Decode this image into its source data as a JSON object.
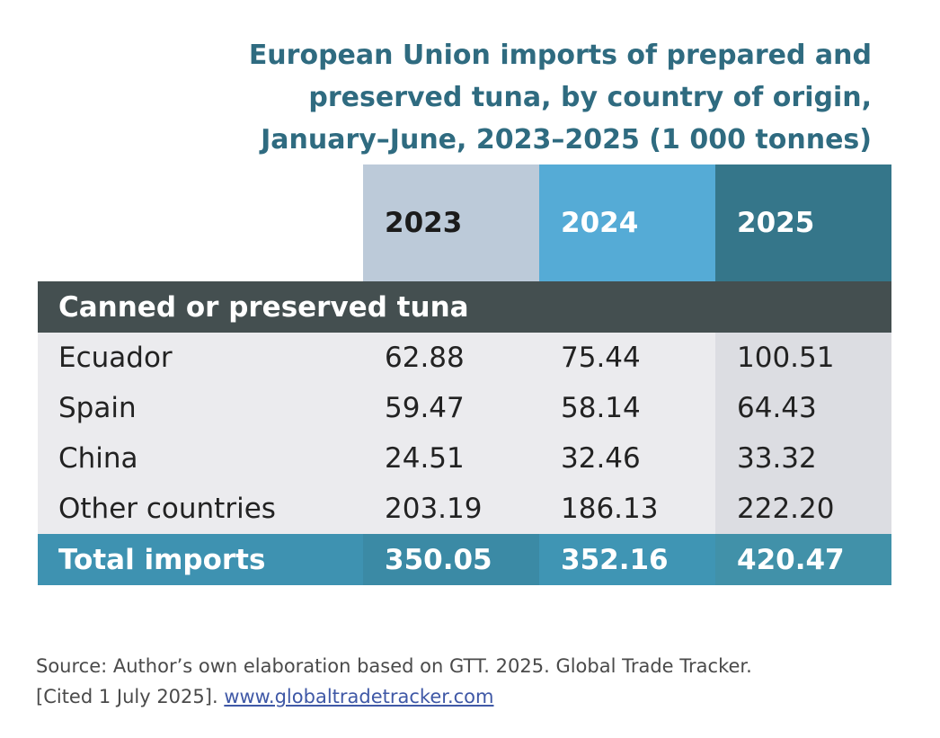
{
  "title_lines": [
    "European Union imports of prepared and",
    "preserved tuna, by country of origin,",
    "January–June, 2023–2025 (1 000 tonnes)"
  ],
  "chart_data": {
    "type": "table",
    "title": "European Union imports of prepared and preserved tuna, by country of origin, January–June, 2023–2025 (1 000 tonnes)",
    "columns": [
      "2023",
      "2024",
      "2025"
    ],
    "section": "Canned or preserved tuna",
    "rows": [
      {
        "label": "Ecuador",
        "values": [
          "62.88",
          "75.44",
          "100.51"
        ]
      },
      {
        "label": "Spain",
        "values": [
          "59.47",
          "58.14",
          "64.43"
        ]
      },
      {
        "label": "China",
        "values": [
          "24.51",
          "32.46",
          "33.32"
        ]
      },
      {
        "label": "Other countries",
        "values": [
          "203.19",
          "186.13",
          "222.20"
        ]
      }
    ],
    "total": {
      "label": "Total imports",
      "values": [
        "350.05",
        "352.16",
        "420.47"
      ]
    }
  },
  "source": {
    "text_line1": "Source: Author’s own elaboration based on GTT. 2025. Global Trade Tracker.",
    "text_line2": "[Cited 1 July 2025]. ",
    "link_text": "www.globaltradetracker.com"
  },
  "colors": {
    "title": "#2f6b80",
    "col_2023": "#bccad9",
    "col_2024": "#55abd6",
    "col_2025": "#35768a",
    "section_band": "#444f50",
    "body_band": "#ebebee",
    "total_band": "#3e92b1",
    "link": "#3f58a6"
  }
}
